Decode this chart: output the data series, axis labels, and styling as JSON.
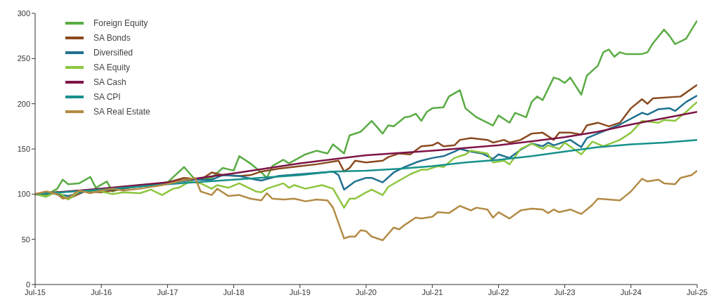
{
  "chart_data": {
    "type": "line",
    "legend": "top left",
    "xlim": [
      "2015-07",
      "2025-07"
    ],
    "xticks": [
      {
        "value": "2015-07",
        "label": "Jul-15"
      },
      {
        "value": "2016-07",
        "label": "Jul-16"
      },
      {
        "value": "2017-07",
        "label": "Jul-17"
      },
      {
        "value": "2018-07",
        "label": "Jul-18"
      },
      {
        "value": "2019-07",
        "label": "Jul-19"
      },
      {
        "value": "2020-07",
        "label": "Jul-20"
      },
      {
        "value": "2021-07",
        "label": "Jul-21"
      },
      {
        "value": "2022-07",
        "label": "Jul-22"
      },
      {
        "value": "2023-07",
        "label": "Jul-23"
      },
      {
        "value": "2024-07",
        "label": "Jul-24"
      },
      {
        "value": "2025-07",
        "label": "Jul-25"
      }
    ],
    "ylim": [
      0,
      300
    ],
    "yticks": [
      0,
      50,
      100,
      150,
      200,
      250,
      300
    ],
    "series": [
      {
        "name": "Foreign Equity",
        "color": "#5aac44",
        "x": [
          "2015-07",
          "2015-09",
          "2015-11",
          "2015-12",
          "2016-01",
          "2016-03",
          "2016-05",
          "2016-06",
          "2016-08",
          "2016-09",
          "2016-11",
          "2017-02",
          "2017-05",
          "2017-07",
          "2017-10",
          "2017-12",
          "2018-03",
          "2018-05",
          "2018-07",
          "2018-08",
          "2018-10",
          "2018-12",
          "2019-01",
          "2019-02",
          "2019-04",
          "2019-05",
          "2019-08",
          "2019-10",
          "2019-12",
          "2020-01",
          "2020-03",
          "2020-04",
          "2020-06",
          "2020-08",
          "2020-10",
          "2020-11",
          "2020-12",
          "2021-02",
          "2021-03",
          "2021-04",
          "2021-05",
          "2021-06",
          "2021-07",
          "2021-09",
          "2021-10",
          "2021-12",
          "2022-01",
          "2022-03",
          "2022-06",
          "2022-07",
          "2022-09",
          "2022-10",
          "2022-12",
          "2023-01",
          "2023-02",
          "2023-03",
          "2023-05",
          "2023-06",
          "2023-07",
          "2023-08",
          "2023-10",
          "2023-11",
          "2024-01",
          "2024-02",
          "2024-03",
          "2024-04",
          "2024-05",
          "2024-06",
          "2024-09",
          "2024-10",
          "2024-11",
          "2025-01",
          "2025-02",
          "2025-03",
          "2025-05",
          "2025-06",
          "2025-07"
        ],
        "values": [
          100,
          99,
          106,
          116,
          111,
          112,
          119,
          107,
          114,
          103,
          107,
          110,
          111,
          113,
          130,
          116,
          118,
          129,
          126,
          142,
          134,
          124,
          118,
          131,
          138,
          134,
          144,
          148,
          145,
          155,
          145,
          165,
          169,
          181,
          167,
          176,
          175,
          185,
          186,
          189,
          181,
          191,
          195,
          196,
          208,
          215,
          195,
          185,
          176,
          187,
          179,
          190,
          185,
          202,
          208,
          204,
          229,
          227,
          223,
          229,
          210,
          231,
          242,
          257,
          260,
          252,
          257,
          255,
          255,
          257,
          267,
          282,
          275,
          266,
          272,
          282,
          292
        ]
      },
      {
        "name": "SA Bonds",
        "color": "#8b4a1f",
        "x": [
          "2015-07",
          "2015-10",
          "2016-01",
          "2016-04",
          "2016-07",
          "2016-10",
          "2017-01",
          "2017-04",
          "2017-07",
          "2017-10",
          "2018-01",
          "2018-03",
          "2018-05",
          "2018-08",
          "2018-10",
          "2018-12",
          "2019-03",
          "2019-07",
          "2019-10",
          "2020-02",
          "2020-03",
          "2020-04",
          "2020-05",
          "2020-07",
          "2020-10",
          "2020-11",
          "2021-01",
          "2021-03",
          "2021-05",
          "2021-07",
          "2021-08",
          "2021-09",
          "2021-11",
          "2021-12",
          "2022-02",
          "2022-05",
          "2022-06",
          "2022-08",
          "2022-09",
          "2022-11",
          "2023-01",
          "2023-03",
          "2023-05",
          "2023-06",
          "2023-08",
          "2023-10",
          "2023-11",
          "2024-01",
          "2024-03",
          "2024-05",
          "2024-07",
          "2024-09",
          "2024-10",
          "2024-11",
          "2025-04",
          "2025-07"
        ],
        "values": [
          100,
          102,
          95,
          103,
          102,
          105,
          108,
          110,
          113,
          118,
          116,
          124,
          121,
          120,
          121,
          125,
          128,
          131,
          133,
          137,
          125,
          129,
          137,
          135,
          137,
          141,
          145,
          144,
          153,
          154,
          157,
          153,
          154,
          160,
          162,
          160,
          157,
          160,
          157,
          160,
          167,
          168,
          160,
          168,
          168,
          166,
          176,
          179,
          175,
          179,
          195,
          205,
          200,
          206,
          208,
          221
        ]
      },
      {
        "name": "Diversified",
        "color": "#1f7090",
        "x": [
          "2015-07",
          "2015-10",
          "2016-01",
          "2016-04",
          "2016-07",
          "2017-01",
          "2017-07",
          "2017-12",
          "2018-03",
          "2018-05",
          "2018-08",
          "2018-11",
          "2018-12",
          "2019-03",
          "2019-07",
          "2020-01",
          "2020-02",
          "2020-03",
          "2020-05",
          "2020-07",
          "2020-08",
          "2020-10",
          "2020-12",
          "2021-02",
          "2021-04",
          "2021-05",
          "2021-07",
          "2021-09",
          "2021-11",
          "2021-12",
          "2022-02",
          "2022-04",
          "2022-06",
          "2022-07",
          "2022-09",
          "2022-11",
          "2023-01",
          "2023-03",
          "2023-04",
          "2023-05",
          "2023-08",
          "2023-10",
          "2023-11",
          "2024-01",
          "2024-05",
          "2024-09",
          "2024-10",
          "2024-12",
          "2025-02",
          "2025-03",
          "2025-05",
          "2025-07"
        ],
        "values": [
          100,
          101,
          98,
          103,
          104,
          108,
          112,
          116,
          116,
          121,
          120,
          116,
          115,
          120,
          122,
          125,
          121,
          105,
          114,
          118,
          118,
          113,
          124,
          130,
          135,
          137,
          140,
          142,
          147,
          150,
          147,
          145,
          139,
          144,
          140,
          149,
          156,
          153,
          157,
          154,
          160,
          152,
          162,
          167,
          177,
          190,
          188,
          194,
          195,
          192,
          202,
          209
        ]
      },
      {
        "name": "SA Equity",
        "color": "#8dc63f",
        "x": [
          "2015-07",
          "2015-09",
          "2015-11",
          "2016-01",
          "2016-03",
          "2016-05",
          "2016-07",
          "2016-09",
          "2016-11",
          "2017-02",
          "2017-04",
          "2017-06",
          "2017-08",
          "2017-09",
          "2017-11",
          "2018-01",
          "2018-03",
          "2018-04",
          "2018-06",
          "2018-08",
          "2018-11",
          "2018-12",
          "2019-01",
          "2019-04",
          "2019-05",
          "2019-06",
          "2019-08",
          "2019-11",
          "2020-01",
          "2020-03",
          "2020-04",
          "2020-05",
          "2020-07",
          "2020-08",
          "2020-10",
          "2020-11",
          "2021-01",
          "2021-03",
          "2021-05",
          "2021-06",
          "2021-08",
          "2021-09",
          "2021-11",
          "2022-01",
          "2022-02",
          "2022-05",
          "2022-06",
          "2022-08",
          "2022-09",
          "2022-11",
          "2023-01",
          "2023-03",
          "2023-04",
          "2023-06",
          "2023-07",
          "2023-10",
          "2023-12",
          "2024-02",
          "2024-05",
          "2024-07",
          "2024-09",
          "2024-12",
          "2025-01",
          "2025-03",
          "2025-05",
          "2025-07"
        ],
        "values": [
          100,
          97,
          103,
          94,
          103,
          104,
          103,
          100,
          102,
          101,
          105,
          99,
          106,
          107,
          114,
          112,
          106,
          110,
          107,
          112,
          103,
          102,
          106,
          112,
          107,
          110,
          106,
          110,
          106,
          85,
          95,
          95,
          102,
          105,
          99,
          108,
          115,
          122,
          127,
          127,
          131,
          130,
          140,
          144,
          148,
          145,
          135,
          137,
          133,
          150,
          156,
          150,
          154,
          150,
          157,
          144,
          158,
          153,
          160,
          168,
          181,
          179,
          182,
          181,
          191,
          202
        ]
      },
      {
        "name": "SA Cash",
        "color": "#7d1547",
        "x": [
          "2015-07",
          "2016-07",
          "2017-07",
          "2018-07",
          "2019-07",
          "2020-07",
          "2021-07",
          "2022-07",
          "2023-07",
          "2024-01",
          "2024-07",
          "2025-01",
          "2025-07"
        ],
        "values": [
          100,
          106,
          113,
          123,
          134,
          143,
          148,
          154,
          163,
          169,
          177,
          184,
          191
        ]
      },
      {
        "name": "SA CPI",
        "color": "#17918a",
        "x": [
          "2015-07",
          "2016-07",
          "2017-07",
          "2018-07",
          "2019-07",
          "2020-01",
          "2020-07",
          "2021-01",
          "2021-07",
          "2022-01",
          "2022-07",
          "2023-01",
          "2023-07",
          "2024-01",
          "2024-07",
          "2025-01",
          "2025-07"
        ],
        "values": [
          100,
          105,
          111,
          116,
          121,
          125,
          126,
          128,
          131,
          135,
          138,
          142,
          147,
          152,
          155,
          157,
          160
        ]
      },
      {
        "name": "SA Real Estate",
        "color": "#b38b45",
        "x": [
          "2015-07",
          "2015-09",
          "2015-11",
          "2015-12",
          "2016-01",
          "2016-03",
          "2016-05",
          "2016-07",
          "2016-09",
          "2016-11",
          "2017-02",
          "2017-06",
          "2017-09",
          "2017-12",
          "2018-01",
          "2018-03",
          "2018-04",
          "2018-05",
          "2018-06",
          "2018-08",
          "2018-10",
          "2018-12",
          "2019-01",
          "2019-02",
          "2019-04",
          "2019-06",
          "2019-08",
          "2019-10",
          "2019-12",
          "2020-01",
          "2020-03",
          "2020-04",
          "2020-05",
          "2020-06",
          "2020-07",
          "2020-08",
          "2020-10",
          "2020-12",
          "2021-01",
          "2021-02",
          "2021-04",
          "2021-05",
          "2021-07",
          "2021-08",
          "2021-10",
          "2021-12",
          "2022-02",
          "2022-03",
          "2022-05",
          "2022-06",
          "2022-07",
          "2022-09",
          "2022-11",
          "2023-01",
          "2023-03",
          "2023-04",
          "2023-05",
          "2023-06",
          "2023-08",
          "2023-10",
          "2023-12",
          "2024-01",
          "2024-05",
          "2024-06",
          "2024-07",
          "2024-09",
          "2024-10",
          "2024-12",
          "2025-01",
          "2025-03",
          "2025-04",
          "2025-06",
          "2025-07"
        ],
        "values": [
          100,
          103,
          100,
          95,
          96,
          104,
          101,
          104,
          106,
          104,
          106,
          110,
          114,
          118,
          103,
          99,
          106,
          102,
          98,
          99,
          95,
          93,
          101,
          95,
          94,
          95,
          92,
          94,
          93,
          85,
          51,
          53,
          53,
          60,
          59,
          53,
          49,
          63,
          61,
          66,
          74,
          73,
          75,
          80,
          79,
          87,
          82,
          85,
          83,
          74,
          80,
          73,
          82,
          84,
          83,
          79,
          83,
          80,
          83,
          78,
          88,
          95,
          93,
          98,
          103,
          117,
          114,
          116,
          112,
          111,
          118,
          121,
          126
        ]
      }
    ]
  }
}
